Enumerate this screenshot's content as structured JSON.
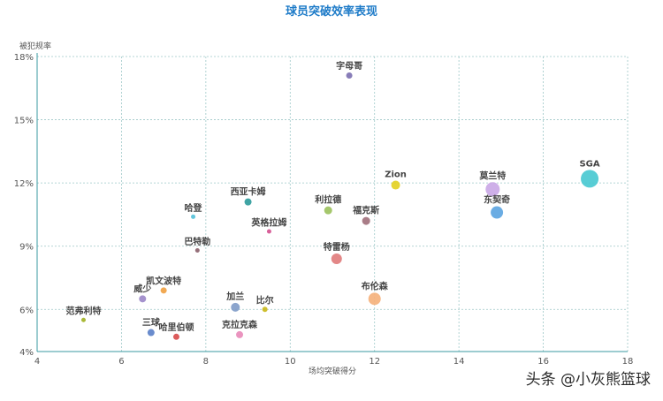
{
  "watermark": "头条 @小灰熊篮球",
  "chart_data": {
    "type": "scatter",
    "title": "球员突破效率表现",
    "xlabel": "场均突破得分",
    "ylabel": "被犯规率",
    "xlim": [
      4,
      18
    ],
    "ylim": [
      4,
      18
    ],
    "xticks": [
      4,
      6,
      8,
      10,
      12,
      14,
      16,
      18
    ],
    "yticks": [
      4,
      6,
      9,
      12,
      15,
      18
    ],
    "ytick_labels": [
      "4%",
      "6%",
      "9%",
      "12%",
      "15%",
      "18%"
    ],
    "grid": true,
    "points": [
      {
        "name": "字母哥",
        "x": 11.4,
        "y": 17.1,
        "size": 3.5,
        "color": "#7b6fb0"
      },
      {
        "name": "SGA",
        "x": 17.1,
        "y": 12.2,
        "size": 10,
        "color": "#46c8d0"
      },
      {
        "name": "Zion",
        "x": 12.5,
        "y": 11.9,
        "size": 5,
        "color": "#e3d01f"
      },
      {
        "name": "莫兰特",
        "x": 14.8,
        "y": 11.7,
        "size": 8,
        "color": "#c9a6e6"
      },
      {
        "name": "东契奇",
        "x": 14.9,
        "y": 10.6,
        "size": 7,
        "color": "#5aa3e0"
      },
      {
        "name": "西亚卡姆",
        "x": 9.0,
        "y": 11.1,
        "size": 4,
        "color": "#2b9a9a"
      },
      {
        "name": "利拉德",
        "x": 10.9,
        "y": 10.7,
        "size": 4.5,
        "color": "#9bc15c"
      },
      {
        "name": "福克斯",
        "x": 11.8,
        "y": 10.2,
        "size": 4.5,
        "color": "#a06f7a"
      },
      {
        "name": "哈登",
        "x": 7.7,
        "y": 10.4,
        "size": 2.5,
        "color": "#52c0d8"
      },
      {
        "name": "英格拉姆",
        "x": 9.5,
        "y": 9.7,
        "size": 2.5,
        "color": "#d4508f"
      },
      {
        "name": "巴特勒",
        "x": 7.8,
        "y": 8.8,
        "size": 2.5,
        "color": "#8a5f6a"
      },
      {
        "name": "特雷杨",
        "x": 11.1,
        "y": 8.4,
        "size": 6,
        "color": "#e07a7a"
      },
      {
        "name": "布伦森",
        "x": 12.0,
        "y": 6.5,
        "size": 7,
        "color": "#f5b07a"
      },
      {
        "name": "凯文波特",
        "x": 7.0,
        "y": 6.9,
        "size": 3.5,
        "color": "#f0a040"
      },
      {
        "name": "威少",
        "x": 6.5,
        "y": 6.5,
        "size": 4,
        "color": "#9b86c8"
      },
      {
        "name": "加兰",
        "x": 8.7,
        "y": 6.1,
        "size": 5,
        "color": "#7f9bc8"
      },
      {
        "name": "比尔",
        "x": 9.4,
        "y": 6.0,
        "size": 3,
        "color": "#c9b81a"
      },
      {
        "name": "范弗利特",
        "x": 5.1,
        "y": 5.5,
        "size": 2.5,
        "color": "#a0b020"
      },
      {
        "name": "三球",
        "x": 6.7,
        "y": 4.9,
        "size": 4,
        "color": "#5a7fc8"
      },
      {
        "name": "哈里伯顿",
        "x": 7.3,
        "y": 4.7,
        "size": 3.5,
        "color": "#d84a4a"
      },
      {
        "name": "克拉克森",
        "x": 8.8,
        "y": 4.8,
        "size": 4,
        "color": "#e888b8"
      }
    ]
  }
}
